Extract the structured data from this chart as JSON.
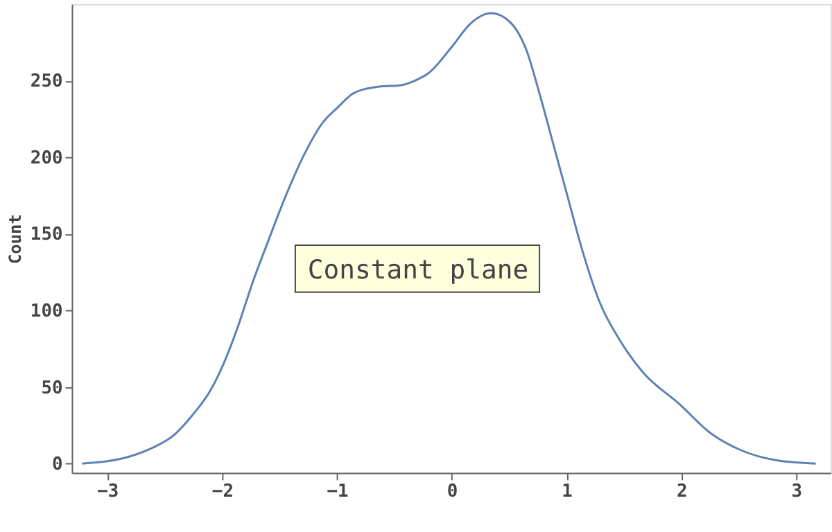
{
  "chart_data": {
    "type": "line",
    "ylabel": "Count",
    "x": [
      -3.22,
      -3.0,
      -2.81,
      -2.6,
      -2.42,
      -2.26,
      -2.1,
      -2.0,
      -1.86,
      -1.74,
      -1.59,
      -1.45,
      -1.29,
      -1.13,
      -1.0,
      -0.85,
      -0.64,
      -0.44,
      -0.32,
      -0.2,
      0.0,
      0.16,
      0.345,
      0.51,
      0.65,
      0.77,
      0.89,
      1.01,
      1.13,
      1.29,
      1.46,
      1.66,
      1.98,
      2.26,
      2.51,
      2.83,
      3.17
    ],
    "series": [
      {
        "color": "#5e81b5",
        "values": [
          0,
          1.5,
          4.5,
          10.5,
          18.6,
          31.5,
          48,
          63,
          90,
          117,
          147,
          174,
          201,
          222,
          232,
          242,
          246,
          247,
          250,
          255,
          272,
          287,
          294,
          288,
          270,
          240,
          207,
          174,
          141,
          105,
          81,
          60,
          39,
          19.5,
          9,
          2.1,
          0
        ]
      }
    ],
    "xlim": [
      -3.31,
      3.3
    ],
    "ylim": [
      -6,
      300
    ],
    "xticks": [
      -3,
      -2,
      -1,
      0,
      1,
      2,
      3
    ],
    "yticks": [
      0,
      50,
      100,
      150,
      200,
      250
    ],
    "grid": false,
    "legend": false,
    "marker": "none",
    "line_style": "solid",
    "annotations": [
      "Constant plane"
    ]
  }
}
